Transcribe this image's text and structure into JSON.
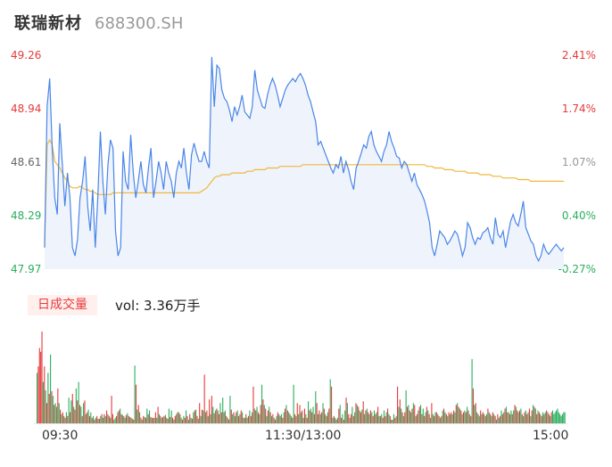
{
  "header": {
    "name": "联瑞新材",
    "code": "688300.SH"
  },
  "volume_panel": {
    "tab_label": "日成交量",
    "vol_text": "vol: 3.36万手"
  },
  "colors": {
    "price_line": "#4a86e8",
    "avg_line": "#f0b73c",
    "up": "#e63a3a",
    "down": "#2aae5e",
    "flat": "#666666",
    "area_fill": "#eef3fc"
  },
  "chart_data": [
    {
      "type": "line",
      "subtype": "intraday-price",
      "title": "",
      "ylim": [
        47.97,
        49.26
      ],
      "price_ticks": [
        {
          "label": "49.26",
          "pct": "2.41%",
          "color": "up"
        },
        {
          "label": "48.94",
          "pct": "1.74%",
          "color": "up"
        },
        {
          "label": "48.61",
          "pct": "1.07%",
          "color": "flat"
        },
        {
          "label": "48.29",
          "pct": "0.40%",
          "color": "down"
        },
        {
          "label": "47.97",
          "pct": "-0.27%",
          "color": "down"
        }
      ],
      "series": [
        {
          "role": "price",
          "values": [
            48.1,
            48.95,
            49.12,
            48.7,
            48.4,
            48.3,
            48.85,
            48.6,
            48.35,
            48.55,
            48.4,
            48.1,
            48.05,
            48.15,
            48.4,
            48.5,
            48.65,
            48.35,
            48.2,
            48.45,
            48.1,
            48.4,
            48.8,
            48.5,
            48.3,
            48.6,
            48.75,
            48.7,
            48.2,
            48.05,
            48.1,
            48.68,
            48.5,
            48.45,
            48.78,
            48.55,
            48.4,
            48.5,
            48.62,
            48.48,
            48.43,
            48.58,
            48.7,
            48.4,
            48.5,
            48.62,
            48.55,
            48.45,
            48.62,
            48.55,
            48.5,
            48.4,
            48.55,
            48.62,
            48.58,
            48.7,
            48.55,
            48.45,
            48.66,
            48.73,
            48.67,
            48.62,
            48.62,
            48.68,
            48.62,
            48.58,
            49.25,
            48.95,
            49.2,
            49.18,
            49.05,
            49,
            48.98,
            48.93,
            48.86,
            48.95,
            48.9,
            48.95,
            49.02,
            48.92,
            48.9,
            48.88,
            48.95,
            49.17,
            49.05,
            49,
            48.95,
            48.94,
            49.02,
            49.08,
            49.12,
            49.08,
            49.02,
            48.95,
            49,
            49.05,
            49.08,
            49.1,
            49.12,
            49.1,
            49.13,
            49.15,
            49.12,
            49.08,
            49.02,
            48.98,
            48.92,
            48.86,
            48.72,
            48.74,
            48.7,
            48.66,
            48.62,
            48.58,
            48.55,
            48.6,
            48.58,
            48.65,
            48.55,
            48.62,
            48.57,
            48.5,
            48.45,
            48.58,
            48.62,
            48.67,
            48.72,
            48.7,
            48.77,
            48.8,
            48.72,
            48.68,
            48.65,
            48.62,
            48.68,
            48.72,
            48.8,
            48.74,
            48.7,
            48.65,
            48.64,
            48.58,
            48.62,
            48.6,
            48.55,
            48.5,
            48.55,
            48.48,
            48.45,
            48.42,
            48.38,
            48.32,
            48.25,
            48.1,
            48.05,
            48.12,
            48.2,
            48.18,
            48.16,
            48.12,
            48.14,
            48.17,
            48.2,
            48.18,
            48.12,
            48.05,
            48.1,
            48.25,
            48.22,
            48.16,
            48.12,
            48.16,
            48.15,
            48.19,
            48.2,
            48.22,
            48.16,
            48.12,
            48.28,
            48.18,
            48.16,
            48.2,
            48.1,
            48.18,
            48.26,
            48.3,
            48.25,
            48.23,
            48.3,
            48.38,
            48.22,
            48.18,
            48.14,
            48.12,
            48.05,
            48.02,
            48.05,
            48.12,
            48.08,
            48.06,
            48.08,
            48.1,
            48.12,
            48.1,
            48.08,
            48.1
          ]
        },
        {
          "role": "average",
          "values": [
            48.1,
            48.72,
            48.75,
            48.72,
            48.62,
            48.6,
            48.58,
            48.55,
            48.52,
            48.5,
            48.47,
            48.46,
            48.46,
            48.46,
            48.47,
            48.46,
            48.45,
            48.45,
            48.44,
            48.44,
            48.43,
            48.42,
            48.42,
            48.42,
            48.42,
            48.42,
            48.42,
            48.43,
            48.43,
            48.43,
            48.43,
            48.43,
            48.43,
            48.43,
            48.43,
            48.43,
            48.43,
            48.43,
            48.43,
            48.43,
            48.43,
            48.43,
            48.43,
            48.43,
            48.43,
            48.43,
            48.43,
            48.43,
            48.43,
            48.43,
            48.43,
            48.43,
            48.43,
            48.43,
            48.43,
            48.43,
            48.43,
            48.43,
            48.43,
            48.43,
            48.43,
            48.43,
            48.44,
            48.45,
            48.46,
            48.48,
            48.5,
            48.52,
            48.53,
            48.53,
            48.54,
            48.54,
            48.54,
            48.54,
            48.55,
            48.55,
            48.55,
            48.55,
            48.55,
            48.55,
            48.56,
            48.56,
            48.56,
            48.57,
            48.57,
            48.57,
            48.57,
            48.57,
            48.58,
            48.58,
            48.58,
            48.58,
            48.58,
            48.59,
            48.59,
            48.59,
            48.59,
            48.59,
            48.59,
            48.59,
            48.59,
            48.59,
            48.6,
            48.6,
            48.6,
            48.6,
            48.6,
            48.6,
            48.6,
            48.6,
            48.6,
            48.6,
            48.6,
            48.6,
            48.6,
            48.6,
            48.6,
            48.6,
            48.6,
            48.6,
            48.6,
            48.6,
            48.6,
            48.6,
            48.6,
            48.6,
            48.6,
            48.6,
            48.6,
            48.6,
            48.6,
            48.6,
            48.6,
            48.6,
            48.6,
            48.6,
            48.6,
            48.6,
            48.6,
            48.6,
            48.6,
            48.6,
            48.6,
            48.6,
            48.6,
            48.6,
            48.6,
            48.6,
            48.6,
            48.6,
            48.6,
            48.59,
            48.59,
            48.59,
            48.58,
            48.58,
            48.58,
            48.58,
            48.57,
            48.57,
            48.57,
            48.57,
            48.56,
            48.56,
            48.56,
            48.56,
            48.56,
            48.55,
            48.55,
            48.55,
            48.55,
            48.55,
            48.54,
            48.54,
            48.54,
            48.54,
            48.54,
            48.53,
            48.53,
            48.53,
            48.53,
            48.52,
            48.52,
            48.52,
            48.52,
            48.52,
            48.52,
            48.51,
            48.51,
            48.51,
            48.51,
            48.51,
            48.5,
            48.5,
            48.5,
            48.5,
            48.5,
            48.5,
            48.5,
            48.5,
            48.5,
            48.5,
            48.5,
            48.5,
            48.5,
            48.5
          ]
        }
      ],
      "x_ticks": [
        "09:30",
        "11:30/13:00",
        "15:00"
      ]
    },
    {
      "type": "bar",
      "subtype": "intraday-volume",
      "volumes": [
        55,
        62,
        82,
        78,
        100,
        45,
        62,
        36,
        22,
        55,
        32,
        75,
        35,
        30,
        20,
        22,
        18,
        38,
        22,
        15,
        10,
        12,
        8,
        6,
        12,
        8,
        28,
        12,
        25,
        32,
        18,
        15,
        38,
        25,
        45,
        20,
        18,
        8,
        22,
        25,
        10,
        12,
        15,
        8,
        12,
        6,
        8,
        4,
        6,
        8,
        5,
        5,
        8,
        10,
        6,
        10,
        8,
        14,
        10,
        8,
        6,
        30,
        10,
        4,
        6,
        8,
        12,
        14,
        16,
        10,
        9,
        8,
        6,
        9,
        11,
        8,
        7,
        6,
        5,
        4,
        63,
        42,
        15,
        20,
        12,
        6,
        4,
        8,
        7,
        6,
        16,
        10,
        14,
        7,
        6,
        6,
        6,
        12,
        6,
        18,
        10,
        8,
        6,
        7,
        8,
        9,
        6,
        5,
        16,
        7,
        14,
        6,
        4,
        8,
        10,
        12,
        12,
        10,
        6,
        4,
        8,
        6,
        14,
        8,
        4,
        10,
        6,
        5,
        12,
        14,
        15,
        8,
        5,
        22,
        8,
        15,
        14,
        53,
        12,
        14,
        8,
        26,
        10,
        30,
        18,
        11,
        14,
        16,
        14,
        10,
        22,
        12,
        28,
        12,
        14,
        8,
        6,
        4,
        30,
        15,
        10,
        12,
        8,
        12,
        14,
        8,
        10,
        14,
        12,
        6,
        6,
        10,
        6,
        8,
        14,
        8,
        12,
        40,
        16,
        14,
        18,
        12,
        10,
        20,
        42,
        26,
        20,
        16,
        8,
        14,
        18,
        12,
        8,
        10,
        6,
        4,
        8,
        12,
        10,
        8,
        10,
        6,
        12,
        16,
        20,
        14,
        12,
        10,
        8,
        6,
        42,
        10,
        8,
        22,
        10,
        20,
        12,
        14,
        6,
        16,
        10,
        6,
        24,
        14,
        16,
        12,
        18,
        10,
        35,
        22,
        10,
        14,
        10,
        12,
        22,
        16,
        10,
        8,
        12,
        16,
        48,
        40,
        6,
        8,
        6,
        4,
        6,
        16,
        20,
        6,
        10,
        4,
        14,
        28,
        22,
        10,
        6,
        10,
        18,
        8,
        12,
        22,
        20,
        18,
        14,
        12,
        15,
        24,
        10,
        14,
        16,
        12,
        10,
        14,
        12,
        8,
        14,
        10,
        12,
        18,
        8,
        8,
        10,
        6,
        14,
        8,
        12,
        16,
        10,
        8,
        4,
        4,
        10,
        6,
        8,
        40,
        18,
        26,
        16,
        12,
        8,
        12,
        36,
        18,
        20,
        14,
        12,
        16,
        22,
        20,
        8,
        10,
        14,
        18,
        20,
        10,
        16,
        8,
        12,
        18,
        14,
        10,
        6,
        22,
        10,
        8,
        12,
        12,
        10,
        8,
        6,
        8,
        14,
        16,
        12,
        10,
        8,
        12,
        10,
        12,
        10,
        14,
        12,
        20,
        22,
        18,
        16,
        14,
        10,
        12,
        14,
        12,
        18,
        14,
        10,
        8,
        70,
        38,
        20,
        22,
        12,
        10,
        8,
        14,
        10,
        12,
        10,
        8,
        10,
        16,
        12,
        10,
        8,
        12,
        10,
        8,
        4,
        10,
        6,
        8,
        14,
        10,
        12,
        16,
        18,
        12,
        12,
        10,
        14,
        10,
        14,
        20,
        18,
        14,
        12,
        14,
        16,
        10,
        8,
        12,
        14,
        10,
        12,
        16,
        8,
        14,
        20,
        18,
        16,
        10,
        14,
        12,
        10,
        8,
        12,
        10,
        12,
        14,
        12,
        10,
        8,
        12,
        14,
        10,
        12,
        14,
        16,
        12,
        10,
        8,
        10,
        12,
        12
      ],
      "directions": "DUUUUDUDUDUDUDUDDUDUDUDUDUDUDUDUDUDUDUDUDUDUDUDUDUDUDUDUDUDUDUUDDUDUDUDUDUDUDUDUDUDUDUDUDUDUDUDUDUDUDUDUDUDUDUDUDUDUDUDUDUDUDUDUDUDUDUDUDUDUDUDUDUDUDUDUDUDUDUDUDUDUDUDUDUDUDUDUDUDUDUDUDUDUDUDUDUDUDUDUDUDUDUDUDUDUDUDUDUDUDUDUDUDUDUDUDUDUDUDUDUDUDUDUDUDUDUDUDUDUDUDUDUDUDUDUDUDUDUDUDUDUDUDUDUDUDUDUDUDUDUDUDUDUDUDUDUDUDUDUDUDUDUDUDUDUDUDUDUDUDUDUDUDUDUDUDUDUDUDUDUDUDUDUDUDUDUDUDUDUDUDUDUDUDUDUDUDUDUDUDUDUDUDUDUDUDUDUDUDUDU"
    }
  ]
}
